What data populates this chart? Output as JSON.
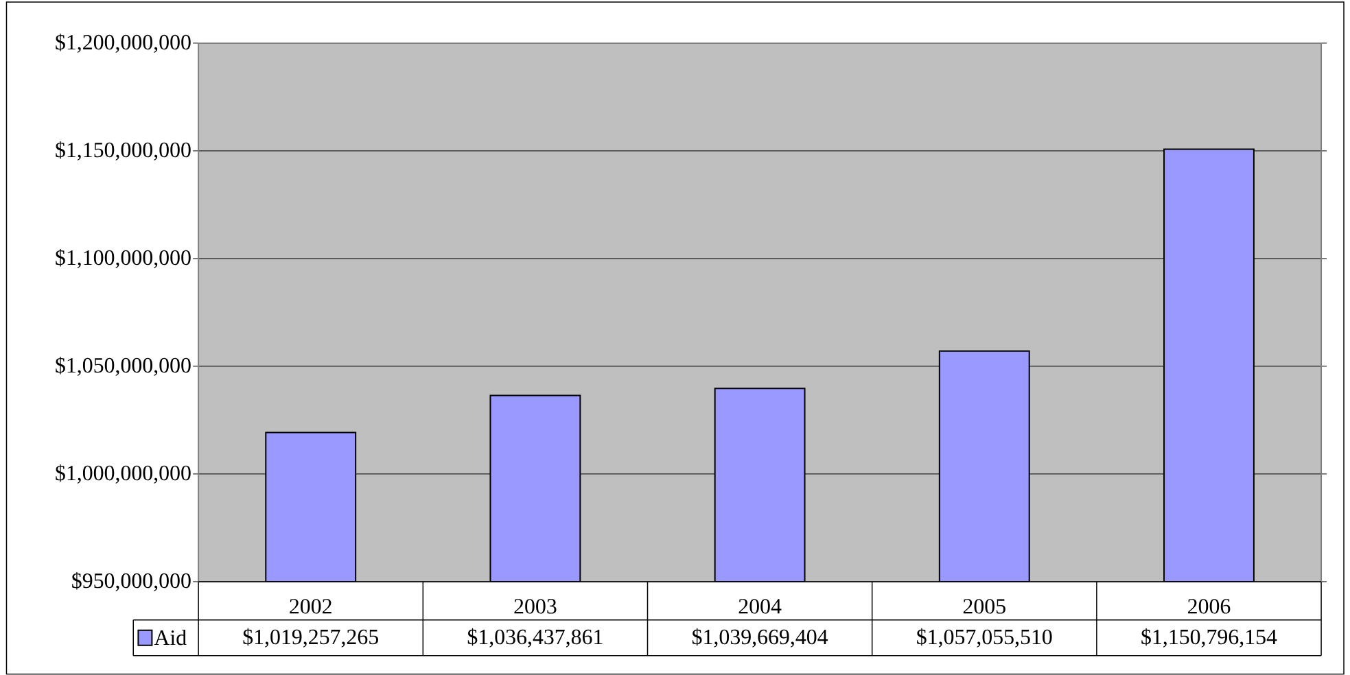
{
  "chart_data": {
    "type": "bar",
    "categories": [
      "2002",
      "2003",
      "2004",
      "2005",
      "2006"
    ],
    "series": [
      {
        "name": "Aid",
        "color": "#9999ff",
        "values": [
          1019257265,
          1036437861,
          1039669404,
          1057055510,
          1150796154
        ],
        "value_labels": [
          "$1,019,257,265",
          "$1,036,437,861",
          "$1,039,669,404",
          "$1,057,055,510",
          "$1,150,796,154"
        ]
      }
    ],
    "ylim": [
      950000000,
      1200000000
    ],
    "yticks": [
      {
        "value": 950000000,
        "label": "$950,000,000"
      },
      {
        "value": 1000000000,
        "label": "$1,000,000,000"
      },
      {
        "value": 1050000000,
        "label": "$1,050,000,000"
      },
      {
        "value": 1100000000,
        "label": "$1,100,000,000"
      },
      {
        "value": 1150000000,
        "label": "$1,150,000,000"
      },
      {
        "value": 1200000000,
        "label": "$1,200,000,000"
      }
    ],
    "grid": "y",
    "legend": "bottom left"
  }
}
